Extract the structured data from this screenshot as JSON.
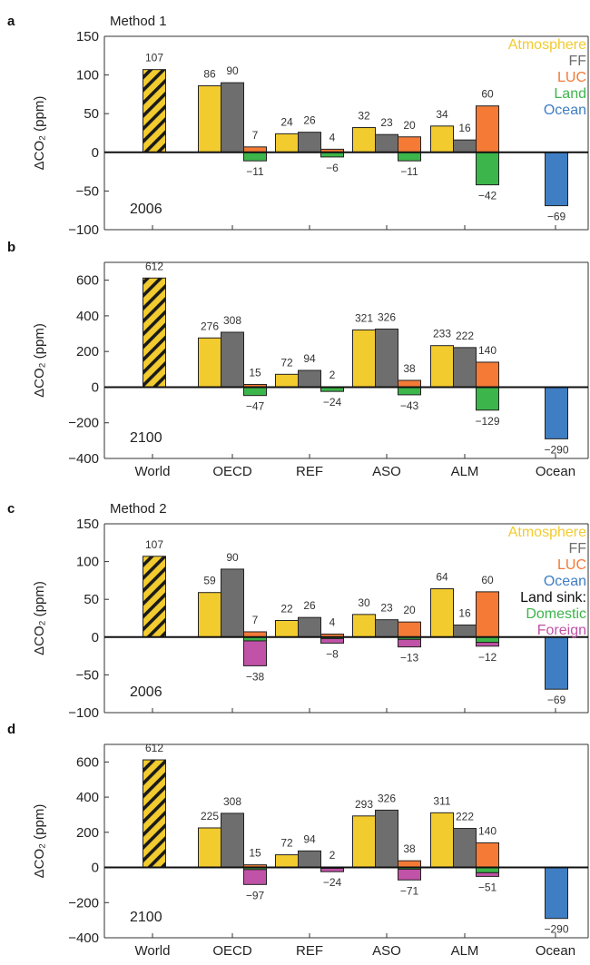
{
  "colors": {
    "atmosphere": "#f2cb2f",
    "ff": "#6e6e6e",
    "luc": "#f47a36",
    "land": "#3cb54a",
    "ocean": "#3f7ec3",
    "domestic": "#3cb54a",
    "foreign": "#c052a7"
  },
  "chart_data": [
    {
      "panel_letter": "a",
      "type": "bar",
      "method_title": "Method 1",
      "year_label": "2006",
      "ylabel": "ΔCO₂ (ppm)",
      "ylim": [
        -100,
        150
      ],
      "yticks": [
        -100,
        -50,
        0,
        50,
        100,
        150
      ],
      "legend": [
        {
          "name": "Atmosphere",
          "color_key": "atmosphere"
        },
        {
          "name": "FF",
          "color_key": "ff"
        },
        {
          "name": "LUC",
          "color_key": "luc"
        },
        {
          "name": "Land",
          "color_key": "land"
        },
        {
          "name": "Ocean",
          "color_key": "ocean"
        }
      ],
      "world": {
        "value": 107,
        "label": "107"
      },
      "regions": [
        {
          "name": "OECD",
          "atm": 86,
          "ff": 90,
          "luc": 7,
          "land": -11,
          "labels": [
            "86",
            "90",
            "7",
            "−11"
          ]
        },
        {
          "name": "REF",
          "atm": 24,
          "ff": 26,
          "luc": 4,
          "land": -6,
          "labels": [
            "24",
            "26",
            "4",
            "−6"
          ]
        },
        {
          "name": "ASO",
          "atm": 32,
          "ff": 23,
          "luc": 20,
          "land": -11,
          "labels": [
            "32",
            "23",
            "20",
            "−11"
          ]
        },
        {
          "name": "ALM",
          "atm": 34,
          "ff": 16,
          "luc": 60,
          "land": -42,
          "labels": [
            "34",
            "16",
            "60",
            "−42"
          ]
        }
      ],
      "ocean": {
        "value": -69,
        "label": "−69"
      },
      "show_xticks": false
    },
    {
      "panel_letter": "b",
      "type": "bar",
      "method_title": "",
      "year_label": "2100",
      "ylabel": "ΔCO₂ (ppm)",
      "ylim": [
        -400,
        700
      ],
      "yticks": [
        -400,
        -200,
        0,
        200,
        400,
        600
      ],
      "legend": [],
      "world": {
        "value": 612,
        "label": "612"
      },
      "regions": [
        {
          "name": "OECD",
          "atm": 276,
          "ff": 308,
          "luc": 15,
          "land": -47,
          "labels": [
            "276",
            "308",
            "15",
            "−47"
          ]
        },
        {
          "name": "REF",
          "atm": 72,
          "ff": 94,
          "luc": 2,
          "land": -24,
          "labels": [
            "72",
            "94",
            "2",
            "−24"
          ]
        },
        {
          "name": "ASO",
          "atm": 321,
          "ff": 326,
          "luc": 38,
          "land": -43,
          "labels": [
            "321",
            "326",
            "38",
            "−43"
          ]
        },
        {
          "name": "ALM",
          "atm": 233,
          "ff": 222,
          "luc": 140,
          "land": -129,
          "labels": [
            "233",
            "222",
            "140",
            "−129"
          ]
        }
      ],
      "ocean": {
        "value": -290,
        "label": "−290"
      },
      "show_xticks": true
    },
    {
      "panel_letter": "c",
      "type": "bar",
      "method_title": "Method 2",
      "year_label": "2006",
      "ylabel": "ΔCO₂ (ppm)",
      "ylim": [
        -100,
        150
      ],
      "yticks": [
        -100,
        -50,
        0,
        50,
        100,
        150
      ],
      "legend": [
        {
          "name": "Atmosphere",
          "color_key": "atmosphere"
        },
        {
          "name": "FF",
          "color_key": "ff"
        },
        {
          "name": "LUC",
          "color_key": "luc"
        },
        {
          "name": "Ocean",
          "color_key": "ocean"
        },
        {
          "name": "Land sink:",
          "color_key": "black"
        },
        {
          "name": "Domestic",
          "color_key": "domestic"
        },
        {
          "name": "Foreign",
          "color_key": "foreign"
        }
      ],
      "world": {
        "value": 107,
        "label": "107"
      },
      "regions": [
        {
          "name": "OECD",
          "atm": 59,
          "ff": 90,
          "luc": 7,
          "domestic": -5,
          "foreign": -33,
          "labels": [
            "59",
            "90",
            "7",
            "−38"
          ]
        },
        {
          "name": "REF",
          "atm": 22,
          "ff": 26,
          "luc": 4,
          "domestic": -2,
          "foreign": -6,
          "labels": [
            "22",
            "26",
            "4",
            "−8"
          ]
        },
        {
          "name": "ASO",
          "atm": 30,
          "ff": 23,
          "luc": 20,
          "domestic": -3,
          "foreign": -10,
          "labels": [
            "30",
            "23",
            "20",
            "−13"
          ]
        },
        {
          "name": "ALM",
          "atm": 64,
          "ff": 16,
          "luc": 60,
          "domestic": -7,
          "foreign": -5,
          "labels": [
            "64",
            "16",
            "60",
            "−12"
          ]
        }
      ],
      "ocean": {
        "value": -69,
        "label": "−69"
      },
      "show_xticks": false
    },
    {
      "panel_letter": "d",
      "type": "bar",
      "method_title": "",
      "year_label": "2100",
      "ylabel": "ΔCO₂ (ppm)",
      "ylim": [
        -400,
        700
      ],
      "yticks": [
        -400,
        -200,
        0,
        200,
        400,
        600
      ],
      "legend": [],
      "world": {
        "value": 612,
        "label": "612"
      },
      "regions": [
        {
          "name": "OECD",
          "atm": 225,
          "ff": 308,
          "luc": 15,
          "domestic": -12,
          "foreign": -85,
          "labels": [
            "225",
            "308",
            "15",
            "−97"
          ]
        },
        {
          "name": "REF",
          "atm": 72,
          "ff": 94,
          "luc": 2,
          "domestic": -5,
          "foreign": -19,
          "labels": [
            "72",
            "94",
            "2",
            "−24"
          ]
        },
        {
          "name": "ASO",
          "atm": 293,
          "ff": 326,
          "luc": 38,
          "domestic": -10,
          "foreign": -61,
          "labels": [
            "293",
            "326",
            "38",
            "−71"
          ]
        },
        {
          "name": "ALM",
          "atm": 311,
          "ff": 222,
          "luc": 140,
          "domestic": -30,
          "foreign": -21,
          "labels": [
            "311",
            "222",
            "140",
            "−51"
          ]
        }
      ],
      "ocean": {
        "value": -290,
        "label": "−290"
      },
      "show_xticks": true
    }
  ],
  "x_categories": [
    "World",
    "OECD",
    "REF",
    "ASO",
    "ALM",
    "Ocean"
  ]
}
